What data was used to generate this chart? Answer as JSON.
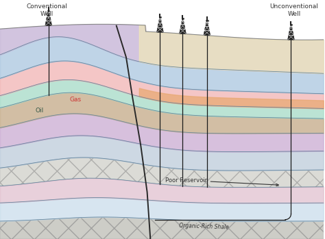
{
  "figsize": [
    4.74,
    3.49
  ],
  "dpi": 100,
  "bg_color": "#ffffff",
  "well_color": "#1a1a1a",
  "text_color": "#333333",
  "label_gas": "Gas",
  "label_oil": "Oil",
  "label_conv": "Conventional\nWell",
  "label_unconv": "Unconventional\nWell",
  "label_poor_res": "Poor Reservoir",
  "label_organic": "Organic-Rich Shale"
}
